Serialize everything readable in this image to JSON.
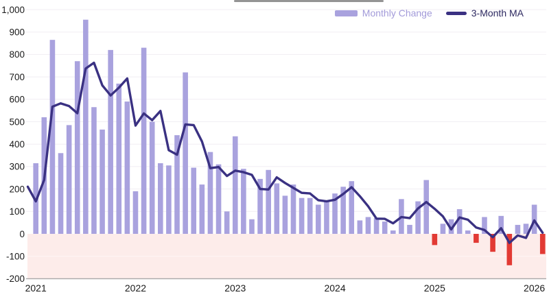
{
  "legend": {
    "monthly_change": "Monthly Change",
    "three_month_ma": "3-Month MA"
  },
  "chart_data": {
    "type": "bar",
    "title": "",
    "xlabel": "",
    "ylabel": "",
    "ylim": [
      -200,
      1000
    ],
    "grid": true,
    "legend_position": "top-right",
    "series_info": [
      {
        "name": "Monthly Change",
        "type": "bar"
      },
      {
        "name": "3-Month MA",
        "type": "line"
      }
    ],
    "x_ticks": [
      {
        "label": "2021",
        "month_index": 0
      },
      {
        "label": "2022",
        "month_index": 12
      },
      {
        "label": "2023",
        "month_index": 24
      },
      {
        "label": "2024",
        "month_index": 36
      },
      {
        "label": "2025",
        "month_index": 48
      },
      {
        "label": "2026",
        "month_index": 60
      }
    ],
    "y_axis": {
      "min": -200,
      "max": 1000,
      "step": 100,
      "ticks": [
        {
          "v": 1000,
          "label": "1,000"
        },
        {
          "v": 900,
          "label": "900"
        },
        {
          "v": 800,
          "label": "800"
        },
        {
          "v": 700,
          "label": "700"
        },
        {
          "v": 600,
          "label": "600"
        },
        {
          "v": 500,
          "label": "500"
        },
        {
          "v": 400,
          "label": "400"
        },
        {
          "v": 300,
          "label": "300"
        },
        {
          "v": 200,
          "label": "200"
        },
        {
          "v": 100,
          "label": "100"
        },
        {
          "v": 0,
          "label": "0"
        },
        {
          "v": -100,
          "label": "-100"
        },
        {
          "v": -200,
          "label": "-200"
        }
      ]
    },
    "ma_lead_point": {
      "label": "Dec 2020",
      "ma": 210
    },
    "months": [
      {
        "label": "Jan 2021",
        "change": 315,
        "ma": 145
      },
      {
        "label": "Feb 2021",
        "change": 520,
        "ma": 240
      },
      {
        "label": "Mar 2021",
        "change": 865,
        "ma": 567
      },
      {
        "label": "Apr 2021",
        "change": 360,
        "ma": 582
      },
      {
        "label": "May 2021",
        "change": 485,
        "ma": 570
      },
      {
        "label": "Jun 2021",
        "change": 770,
        "ma": 538
      },
      {
        "label": "Jul 2021",
        "change": 955,
        "ma": 737
      },
      {
        "label": "Aug 2021",
        "change": 565,
        "ma": 763
      },
      {
        "label": "Sep 2021",
        "change": 465,
        "ma": 662
      },
      {
        "label": "Oct 2021",
        "change": 820,
        "ma": 617
      },
      {
        "label": "Nov 2021",
        "change": 670,
        "ma": 652
      },
      {
        "label": "Dec 2021",
        "change": 590,
        "ma": 693
      },
      {
        "label": "Jan 2022",
        "change": 190,
        "ma": 483
      },
      {
        "label": "Feb 2022",
        "change": 830,
        "ma": 537
      },
      {
        "label": "Mar 2022",
        "change": 500,
        "ma": 507
      },
      {
        "label": "Apr 2022",
        "change": 315,
        "ma": 548
      },
      {
        "label": "May 2022",
        "change": 305,
        "ma": 373
      },
      {
        "label": "Jun 2022",
        "change": 440,
        "ma": 353
      },
      {
        "label": "Jul 2022",
        "change": 720,
        "ma": 488
      },
      {
        "label": "Aug 2022",
        "change": 295,
        "ma": 485
      },
      {
        "label": "Sep 2022",
        "change": 220,
        "ma": 412
      },
      {
        "label": "Oct 2022",
        "change": 365,
        "ma": 293
      },
      {
        "label": "Nov 2022",
        "change": 310,
        "ma": 298
      },
      {
        "label": "Dec 2022",
        "change": 100,
        "ma": 258
      },
      {
        "label": "Jan 2023",
        "change": 435,
        "ma": 282
      },
      {
        "label": "Feb 2023",
        "change": 290,
        "ma": 275
      },
      {
        "label": "Mar 2023",
        "change": 65,
        "ma": 263
      },
      {
        "label": "Apr 2023",
        "change": 245,
        "ma": 200
      },
      {
        "label": "May 2023",
        "change": 285,
        "ma": 198
      },
      {
        "label": "Jun 2023",
        "change": 225,
        "ma": 252
      },
      {
        "label": "Jul 2023",
        "change": 170,
        "ma": 227
      },
      {
        "label": "Aug 2023",
        "change": 220,
        "ma": 205
      },
      {
        "label": "Sep 2023",
        "change": 160,
        "ma": 183
      },
      {
        "label": "Oct 2023",
        "change": 160,
        "ma": 180
      },
      {
        "label": "Nov 2023",
        "change": 130,
        "ma": 150
      },
      {
        "label": "Dec 2023",
        "change": 145,
        "ma": 145
      },
      {
        "label": "Jan 2024",
        "change": 180,
        "ma": 152
      },
      {
        "label": "Feb 2024",
        "change": 210,
        "ma": 178
      },
      {
        "label": "Mar 2024",
        "change": 235,
        "ma": 208
      },
      {
        "label": "Apr 2024",
        "change": 60,
        "ma": 168
      },
      {
        "label": "May 2024",
        "change": 75,
        "ma": 123
      },
      {
        "label": "Jun 2024",
        "change": 70,
        "ma": 68
      },
      {
        "label": "Jul 2024",
        "change": 55,
        "ma": 67
      },
      {
        "label": "Aug 2024",
        "change": 15,
        "ma": 47
      },
      {
        "label": "Sep 2024",
        "change": 155,
        "ma": 75
      },
      {
        "label": "Oct 2024",
        "change": 40,
        "ma": 70
      },
      {
        "label": "Nov 2024",
        "change": 145,
        "ma": 113
      },
      {
        "label": "Dec 2024",
        "change": 240,
        "ma": 142
      },
      {
        "label": "Jan 2025",
        "change": -50,
        "ma": 112
      },
      {
        "label": "Feb 2025",
        "change": 45,
        "ma": 78
      },
      {
        "label": "Mar 2025",
        "change": 65,
        "ma": 20
      },
      {
        "label": "Apr 2025",
        "change": 110,
        "ma": 73
      },
      {
        "label": "May 2025",
        "change": 15,
        "ma": 63
      },
      {
        "label": "Jun 2025",
        "change": -40,
        "ma": 28
      },
      {
        "label": "Jul 2025",
        "change": 75,
        "ma": 17
      },
      {
        "label": "Aug 2025",
        "change": -80,
        "ma": -15
      },
      {
        "label": "Sep 2025",
        "change": 80,
        "ma": 25
      },
      {
        "label": "Oct 2025",
        "change": -140,
        "ma": -40
      },
      {
        "label": "Nov 2025",
        "change": 40,
        "ma": -7
      },
      {
        "label": "Dec 2025",
        "change": 45,
        "ma": -18
      },
      {
        "label": "Jan 2026",
        "change": 130,
        "ma": 60
      },
      {
        "label": "Feb 2026",
        "change": -90,
        "ma": 5
      }
    ],
    "colors": {
      "bar": "#a9a2de",
      "negative_bar": "#e23a34",
      "line": "#3a3182",
      "negative_region": "#fdecea",
      "grid": "#f1eef3",
      "grid_on_negative": "#fef6f5",
      "baseline": "#a8a8a8",
      "axis_text": "#191919",
      "legend_monthly_text": "#a29ad9",
      "legend_ma_text": "#2c2860",
      "scrollbar_remnant": "#949494"
    }
  }
}
